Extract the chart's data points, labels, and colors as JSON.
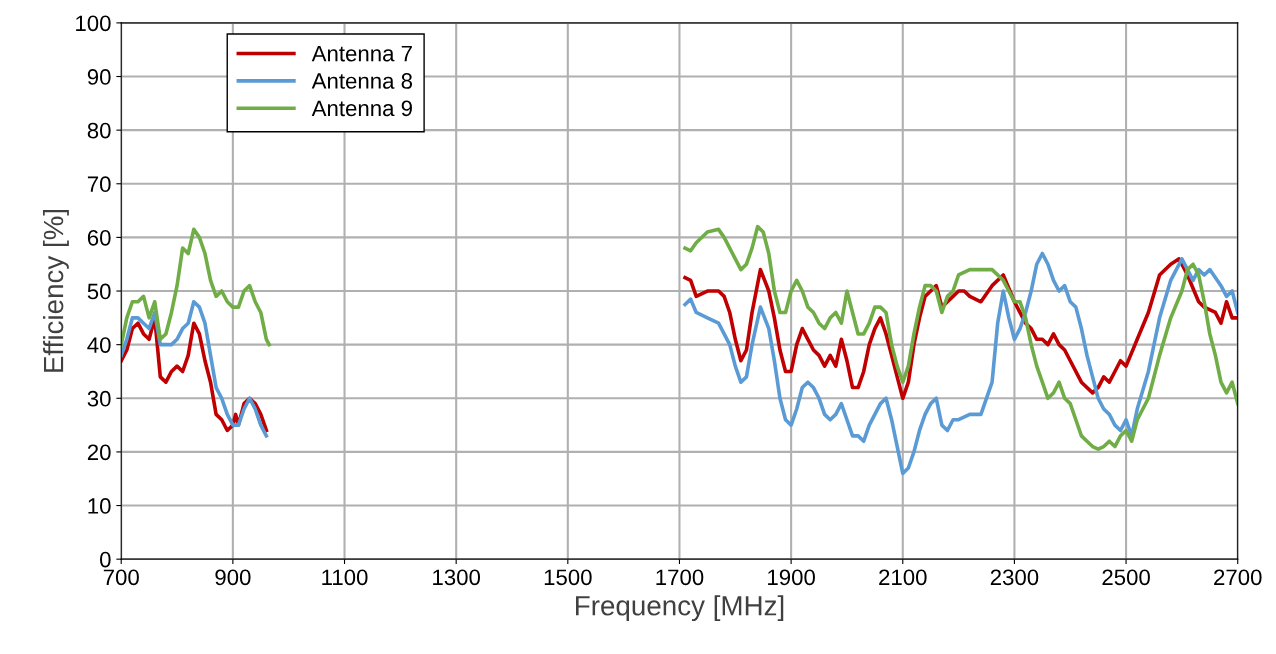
{
  "chart_data": {
    "type": "line",
    "xlabel": "Frequency [MHz]",
    "ylabel": "Efficiency [%]",
    "xlim": [
      700,
      2700
    ],
    "xticks": [
      700,
      900,
      1100,
      1300,
      1500,
      1700,
      1900,
      2100,
      2300,
      2500,
      2700
    ],
    "ylim": [
      0,
      100
    ],
    "yticks": [
      0,
      10,
      20,
      30,
      40,
      50,
      60,
      70,
      80,
      90,
      100
    ],
    "grid": true,
    "legend": "top left",
    "marker": "none",
    "line_style": "solid",
    "series": [
      {
        "name": "Antenna 7",
        "color": "#c00000",
        "x": [
          700,
          710,
          720,
          730,
          740,
          750,
          760,
          770,
          780,
          790,
          800,
          810,
          820,
          830,
          840,
          850,
          860,
          870,
          880,
          890,
          900,
          905,
          910,
          920,
          930,
          940,
          950,
          960,
          1300,
          1710,
          1720,
          1730,
          1750,
          1770,
          1780,
          1790,
          1800,
          1810,
          1820,
          1830,
          1845,
          1860,
          1870,
          1880,
          1890,
          1900,
          1910,
          1920,
          1930,
          1940,
          1950,
          1960,
          1970,
          1980,
          1990,
          2000,
          2010,
          2020,
          2030,
          2040,
          2050,
          2060,
          2070,
          2080,
          2090,
          2100,
          2110,
          2120,
          2130,
          2140,
          2150,
          2160,
          2170,
          2180,
          2190,
          2200,
          2210,
          2220,
          2240,
          2260,
          2280,
          2300,
          2320,
          2330,
          2340,
          2350,
          2360,
          2370,
          2380,
          2390,
          2400,
          2420,
          2440,
          2450,
          2460,
          2470,
          2480,
          2490,
          2500,
          2520,
          2540,
          2560,
          2580,
          2595,
          2610,
          2630,
          2640,
          2660,
          2670,
          2680,
          2690,
          2700
        ],
        "values": [
          37,
          39,
          43,
          44,
          42,
          41,
          45,
          34,
          33,
          35,
          36,
          35,
          38,
          44,
          42,
          37,
          33,
          27,
          26,
          24,
          25,
          27,
          25,
          29,
          30,
          29,
          27,
          24,
          null,
          52.5,
          52,
          49,
          50,
          50,
          49,
          46,
          41,
          37,
          39,
          46,
          54,
          50,
          45,
          39,
          35,
          35,
          40,
          43,
          41,
          39,
          38,
          36,
          38,
          36,
          41,
          37,
          32,
          32,
          35,
          40,
          43,
          45,
          42,
          38,
          34,
          30,
          33,
          40,
          45,
          49,
          50,
          51,
          47,
          48,
          49,
          50,
          50,
          49,
          48,
          51,
          53,
          48,
          44,
          43,
          41,
          41,
          40,
          42,
          40,
          39,
          37,
          33,
          31,
          32,
          34,
          33,
          35,
          37,
          36,
          41,
          46,
          53,
          55,
          56,
          53,
          48,
          47,
          46,
          44,
          48,
          45,
          45
        ]
      },
      {
        "name": "Antenna 8",
        "color": "#5b9bd5",
        "x": [
          700,
          710,
          720,
          730,
          740,
          750,
          760,
          770,
          780,
          790,
          800,
          810,
          820,
          830,
          840,
          850,
          860,
          870,
          880,
          890,
          900,
          910,
          920,
          930,
          940,
          950,
          960,
          1300,
          1710,
          1720,
          1730,
          1750,
          1770,
          1790,
          1800,
          1810,
          1820,
          1830,
          1845,
          1860,
          1870,
          1880,
          1890,
          1900,
          1910,
          1920,
          1930,
          1940,
          1950,
          1960,
          1970,
          1980,
          1990,
          2000,
          2010,
          2020,
          2030,
          2040,
          2050,
          2060,
          2070,
          2080,
          2090,
          2100,
          2110,
          2120,
          2130,
          2140,
          2150,
          2160,
          2170,
          2180,
          2190,
          2200,
          2220,
          2240,
          2260,
          2270,
          2280,
          2290,
          2300,
          2310,
          2320,
          2330,
          2340,
          2350,
          2360,
          2370,
          2380,
          2390,
          2400,
          2410,
          2420,
          2430,
          2440,
          2450,
          2460,
          2470,
          2480,
          2490,
          2500,
          2510,
          2520,
          2540,
          2560,
          2580,
          2600,
          2610,
          2620,
          2630,
          2640,
          2650,
          2670,
          2680,
          2690,
          2700
        ],
        "values": [
          38,
          41,
          45,
          45,
          44,
          43,
          46,
          40,
          40,
          40,
          41,
          43,
          44,
          48,
          47,
          44,
          38,
          32,
          30,
          27,
          25,
          25,
          28,
          30,
          28,
          25,
          23,
          null,
          47.5,
          48.5,
          46,
          45,
          44,
          40,
          36,
          33,
          34,
          40,
          47,
          43,
          37,
          30,
          26,
          25,
          28,
          32,
          33,
          32,
          30,
          27,
          26,
          27,
          29,
          26,
          23,
          23,
          22,
          25,
          27,
          29,
          30,
          26,
          21,
          16,
          17,
          20,
          24,
          27,
          29,
          30,
          25,
          24,
          26,
          26,
          27,
          27,
          33,
          44,
          50,
          45,
          41,
          43,
          46,
          50,
          55,
          57,
          55,
          52,
          50,
          51,
          48,
          47,
          43,
          38,
          34,
          30,
          28,
          27,
          25,
          24,
          26,
          23,
          28,
          35,
          45,
          52,
          56,
          54,
          52,
          54,
          53,
          54,
          51,
          49,
          50,
          46
        ]
      },
      {
        "name": "Antenna 9",
        "color": "#70ad47",
        "x": [
          700,
          710,
          720,
          730,
          740,
          750,
          760,
          770,
          780,
          790,
          800,
          810,
          820,
          830,
          840,
          850,
          860,
          870,
          880,
          890,
          900,
          910,
          920,
          930,
          940,
          950,
          960,
          965,
          1300,
          1710,
          1720,
          1730,
          1750,
          1770,
          1780,
          1790,
          1800,
          1810,
          1820,
          1830,
          1840,
          1850,
          1860,
          1870,
          1880,
          1890,
          1900,
          1910,
          1920,
          1930,
          1940,
          1950,
          1960,
          1970,
          1980,
          1990,
          2000,
          2010,
          2020,
          2030,
          2040,
          2050,
          2060,
          2070,
          2080,
          2090,
          2100,
          2110,
          2120,
          2130,
          2140,
          2150,
          2160,
          2170,
          2180,
          2190,
          2200,
          2220,
          2240,
          2260,
          2280,
          2290,
          2300,
          2310,
          2320,
          2330,
          2340,
          2350,
          2360,
          2370,
          2380,
          2390,
          2400,
          2410,
          2420,
          2430,
          2440,
          2450,
          2460,
          2470,
          2480,
          2490,
          2500,
          2510,
          2520,
          2540,
          2560,
          2580,
          2600,
          2610,
          2620,
          2630,
          2640,
          2650,
          2660,
          2670,
          2680,
          2690,
          2700
        ],
        "values": [
          40,
          45,
          48,
          48,
          49,
          45,
          48,
          41,
          42,
          46,
          51,
          58,
          57,
          61.5,
          60,
          57,
          52,
          49,
          50,
          48,
          47,
          47,
          50,
          51,
          48,
          46,
          41,
          40,
          null,
          58,
          57.5,
          59,
          61,
          61.5,
          60,
          58,
          56,
          54,
          55,
          58,
          62,
          61,
          57,
          50,
          46,
          46,
          50,
          52,
          50,
          47,
          46,
          44,
          43,
          45,
          46,
          44,
          50,
          46,
          42,
          42,
          44,
          47,
          47,
          46,
          40,
          36,
          33,
          36,
          42,
          47,
          51,
          51,
          50,
          46,
          49,
          50,
          53,
          54,
          54,
          54,
          52,
          50,
          48,
          48,
          45,
          40,
          36,
          33,
          30,
          31,
          33,
          30,
          29,
          26,
          23,
          22,
          21,
          20.5,
          21,
          22,
          21,
          23,
          24,
          22,
          26,
          30,
          38,
          45,
          50,
          54,
          55,
          53,
          48,
          42,
          38,
          33,
          31,
          33,
          29
        ]
      }
    ]
  }
}
